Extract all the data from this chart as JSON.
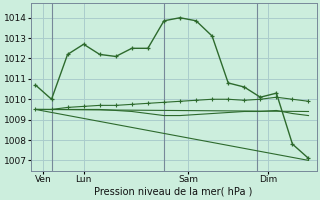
{
  "background_color": "#cceedd",
  "grid_color": "#aacccc",
  "line_color": "#2d6a2d",
  "title": "Pression niveau de la mer( hPa )",
  "ylabel_ticks": [
    1007,
    1008,
    1009,
    1010,
    1011,
    1012,
    1013,
    1014
  ],
  "ylim": [
    1006.5,
    1014.7
  ],
  "xlim": [
    -0.3,
    17.5
  ],
  "xtick_labels": [
    "Ven",
    "Lun",
    "Sam",
    "Dim"
  ],
  "xtick_positions": [
    0.5,
    3.0,
    9.5,
    14.5
  ],
  "vlines_x": [
    1.0,
    8.0,
    13.8
  ],
  "series": [
    {
      "x": [
        0,
        1,
        2,
        3,
        4,
        5,
        6,
        7,
        8,
        9,
        10,
        11,
        12,
        13,
        14,
        15,
        16,
        17
      ],
      "y": [
        1010.7,
        1010.0,
        1012.2,
        1012.7,
        1012.2,
        1012.1,
        1012.5,
        1012.5,
        1013.85,
        1014.0,
        1013.85,
        1013.1,
        1010.8,
        1010.6,
        1010.1,
        1010.3,
        1007.8,
        1007.1
      ],
      "marker": "+"
    },
    {
      "x": [
        0,
        1,
        2,
        3,
        4,
        5,
        6,
        7,
        8,
        9,
        10,
        11,
        12,
        13,
        14,
        15,
        16,
        17
      ],
      "y": [
        1009.5,
        1009.5,
        1009.6,
        1009.65,
        1009.7,
        1009.7,
        1009.75,
        1009.8,
        1009.85,
        1009.9,
        1009.95,
        1010.0,
        1010.0,
        1009.95,
        1010.0,
        1010.1,
        1010.0,
        1009.9
      ],
      "marker": "+"
    },
    {
      "x": [
        0,
        1,
        2,
        3,
        4,
        5,
        6,
        7,
        8,
        9,
        10,
        11,
        12,
        13,
        14,
        15,
        16,
        17
      ],
      "y": [
        1009.5,
        1009.5,
        1009.5,
        1009.5,
        1009.5,
        1009.45,
        1009.4,
        1009.3,
        1009.2,
        1009.2,
        1009.25,
        1009.3,
        1009.35,
        1009.4,
        1009.4,
        1009.45,
        1009.3,
        1009.2
      ],
      "marker": null
    },
    {
      "x": [
        0,
        17
      ],
      "y": [
        1009.5,
        1009.4
      ],
      "marker": null
    },
    {
      "x": [
        0,
        17
      ],
      "y": [
        1009.5,
        1007.0
      ],
      "marker": null
    }
  ]
}
